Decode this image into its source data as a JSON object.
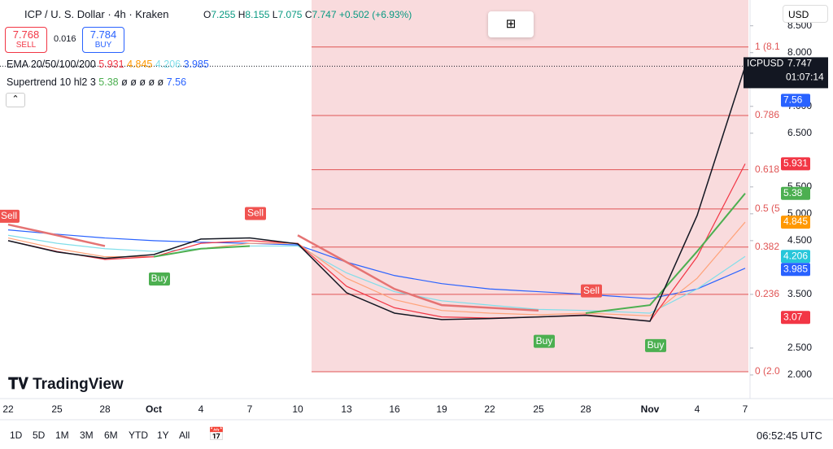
{
  "chart_data": {
    "type": "line",
    "title": "ICP / U. S. Dollar · 4h · Kraken",
    "ohlc": {
      "o_label": "O",
      "o": "7.255",
      "h_label": "H",
      "h": "8.155",
      "l_label": "L",
      "l": "7.075",
      "c_label": "C",
      "c": "7.747",
      "change": "+0.502 (+6.93%)"
    },
    "sell": {
      "price": "7.768",
      "label": "SELL"
    },
    "spread": "0.016",
    "buy": {
      "price": "7.784",
      "label": "BUY"
    },
    "ema_legend": {
      "name": "EMA 20/50/100/200",
      "values": [
        "5.931",
        "4.845",
        "4.206",
        "3.985"
      ]
    },
    "supertrend_legend": {
      "name": "Supertrend 10 hl2 3",
      "value": "5.38",
      "empty": "ø ø ø ø ø",
      "value2": "7.56"
    },
    "currency": "USD",
    "symbol": "ICPUSD",
    "countdown": "01:07:14",
    "brand": "TradingView",
    "categories": [
      "22",
      "25",
      "28",
      "Oct",
      "4",
      "7",
      "10",
      "13",
      "16",
      "19",
      "22",
      "25",
      "28",
      "Nov",
      "4",
      "7"
    ],
    "series": [
      {
        "color": "#2962ff",
        "values": [
          4.7,
          4.62,
          4.55,
          4.5,
          4.47,
          4.45,
          4.42,
          4.1,
          3.85,
          3.7,
          3.6,
          3.55,
          3.5,
          3.42,
          3.6,
          3.985
        ]
      },
      {
        "color": "#80deea",
        "values": [
          4.6,
          4.45,
          4.35,
          4.3,
          4.35,
          4.4,
          4.4,
          3.9,
          3.55,
          3.38,
          3.3,
          3.22,
          3.2,
          3.15,
          3.6,
          4.206
        ]
      },
      {
        "color": "#ffa37a",
        "values": [
          4.55,
          4.35,
          4.2,
          4.2,
          4.35,
          4.45,
          4.45,
          3.8,
          3.4,
          3.2,
          3.15,
          3.12,
          3.15,
          3.1,
          3.8,
          4.845
        ]
      },
      {
        "color": "#f23645",
        "values": [
          4.5,
          4.3,
          4.15,
          4.2,
          4.45,
          4.5,
          4.45,
          3.65,
          3.25,
          3.08,
          3.06,
          3.08,
          3.12,
          3.0,
          4.2,
          5.931
        ]
      },
      {
        "color": "#e57373",
        "width": 2.5,
        "values": [
          4.8,
          4.6,
          4.4,
          null,
          null,
          null,
          4.6,
          4.1,
          3.6,
          3.3,
          3.25,
          3.2,
          null,
          null,
          null,
          null
        ]
      },
      {
        "color": "#4caf50",
        "width": 2,
        "values": [
          null,
          null,
          null,
          4.2,
          4.35,
          4.4,
          null,
          null,
          null,
          null,
          null,
          null,
          3.15,
          3.3,
          4.3,
          5.38
        ]
      },
      {
        "color": "#131722",
        "width": 1.5,
        "values": [
          4.5,
          4.29,
          4.17,
          4.24,
          4.53,
          4.55,
          4.44,
          3.53,
          3.15,
          3.03,
          3.05,
          3.08,
          3.11,
          3.0,
          4.97,
          7.747
        ]
      }
    ],
    "signals": [
      "Sell",
      "Buy",
      "Sell",
      "Buy",
      "Sell",
      "Buy"
    ],
    "ylim": [
      1.56,
      8.98
    ],
    "yticks": [
      {
        "value": 2,
        "label": "2.000"
      },
      {
        "value": 2.5,
        "label": "2.500"
      },
      {
        "value": 3.5,
        "label": "3.500"
      },
      {
        "value": 4.5,
        "label": "4.500"
      },
      {
        "value": 5,
        "label": "5.000"
      },
      {
        "value": 5.5,
        "label": "5.500"
      },
      {
        "value": 6.5,
        "label": "6.500"
      },
      {
        "value": 7,
        "label": "7.000"
      },
      {
        "value": 8,
        "label": "8.000"
      },
      {
        "value": 8.5,
        "label": "8.500"
      }
    ],
    "fib_levels": [
      {
        "value": 8.106,
        "label": "1 (8.1"
      },
      {
        "value": 6.83,
        "label": "0.786"
      },
      {
        "value": 5.82,
        "label": "0.618"
      },
      {
        "value": 5.09,
        "label": "0.5 (5"
      },
      {
        "value": 4.38,
        "label": "0.382"
      },
      {
        "value": 3.5,
        "label": "0.236"
      },
      {
        "value": 2.06,
        "label": "0 (2.0"
      }
    ],
    "price_tags": [
      {
        "value": 7.747,
        "color": "#131722"
      },
      {
        "value": 7.56,
        "color": "#2962ff"
      },
      {
        "value": 5.931,
        "color": "#f23645"
      },
      {
        "value": 5.38,
        "color": "#4caf50"
      },
      {
        "value": 4.845,
        "color": "#ff9800"
      },
      {
        "value": 4.206,
        "color": "#26c6da"
      },
      {
        "value": 3.985,
        "color": "#2962ff"
      },
      {
        "value": 3.07,
        "color": "#f23645"
      }
    ],
    "periods": [
      "1D",
      "5D",
      "1M",
      "3M",
      "6M",
      "YTD",
      "1Y",
      "All"
    ],
    "time": "06:52:45 UTC"
  }
}
